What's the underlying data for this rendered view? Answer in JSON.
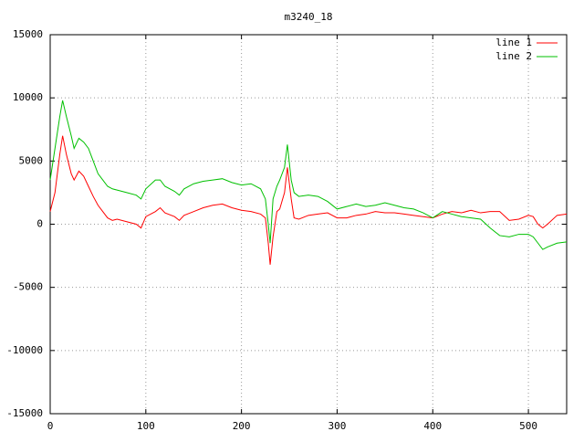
{
  "chart_data": {
    "type": "line",
    "title": "m3240_18",
    "x": [
      0,
      5,
      10,
      13,
      17,
      22,
      25,
      30,
      35,
      40,
      45,
      50,
      55,
      60,
      65,
      70,
      80,
      90,
      95,
      100,
      110,
      115,
      120,
      130,
      135,
      140,
      150,
      160,
      170,
      180,
      190,
      200,
      210,
      220,
      225,
      228,
      230,
      233,
      237,
      240,
      245,
      248,
      252,
      255,
      260,
      270,
      280,
      290,
      300,
      310,
      320,
      330,
      340,
      350,
      360,
      370,
      380,
      390,
      400,
      410,
      420,
      430,
      440,
      450,
      460,
      470,
      480,
      490,
      500,
      505,
      510,
      515,
      520,
      530,
      540
    ],
    "series": [
      {
        "name": "line 1",
        "color": "#ff0000",
        "values": [
          1000,
          2500,
          5500,
          7000,
          5500,
          4000,
          3500,
          4200,
          3800,
          3000,
          2200,
          1500,
          1000,
          500,
          300,
          400,
          200,
          0,
          -300,
          600,
          1000,
          1300,
          900,
          600,
          300,
          700,
          1000,
          1300,
          1500,
          1600,
          1300,
          1100,
          1000,
          800,
          500,
          -1500,
          -3200,
          -1000,
          1000,
          1200,
          2500,
          4500,
          2000,
          500,
          400,
          700,
          800,
          900,
          500,
          500,
          700,
          800,
          1000,
          900,
          900,
          800,
          700,
          600,
          500,
          800,
          1000,
          900,
          1100,
          900,
          1000,
          1000,
          300,
          400,
          700,
          600,
          0,
          -300,
          0,
          700,
          800
        ]
      },
      {
        "name": "line 2",
        "color": "#00c000",
        "values": [
          3500,
          6000,
          8500,
          9800,
          8500,
          7000,
          6000,
          6800,
          6500,
          6000,
          5000,
          4000,
          3500,
          3000,
          2800,
          2700,
          2500,
          2300,
          2000,
          2800,
          3500,
          3500,
          3000,
          2600,
          2300,
          2800,
          3200,
          3400,
          3500,
          3600,
          3300,
          3100,
          3200,
          2800,
          2000,
          0,
          -1500,
          2000,
          3000,
          3500,
          4500,
          6300,
          3500,
          2500,
          2200,
          2300,
          2200,
          1800,
          1200,
          1400,
          1600,
          1400,
          1500,
          1700,
          1500,
          1300,
          1200,
          900,
          500,
          1000,
          800,
          600,
          500,
          400,
          -300,
          -900,
          -1000,
          -800,
          -800,
          -1000,
          -1500,
          -2000,
          -1800,
          -1500,
          -1400
        ]
      }
    ],
    "xlim": [
      0,
      540
    ],
    "xticks": [
      0,
      100,
      200,
      300,
      400,
      500
    ],
    "ylim": [
      -15000,
      15000
    ],
    "yticks": [
      -15000,
      -10000,
      -5000,
      0,
      5000,
      10000,
      15000
    ],
    "grid": true,
    "legend": "top-right"
  }
}
